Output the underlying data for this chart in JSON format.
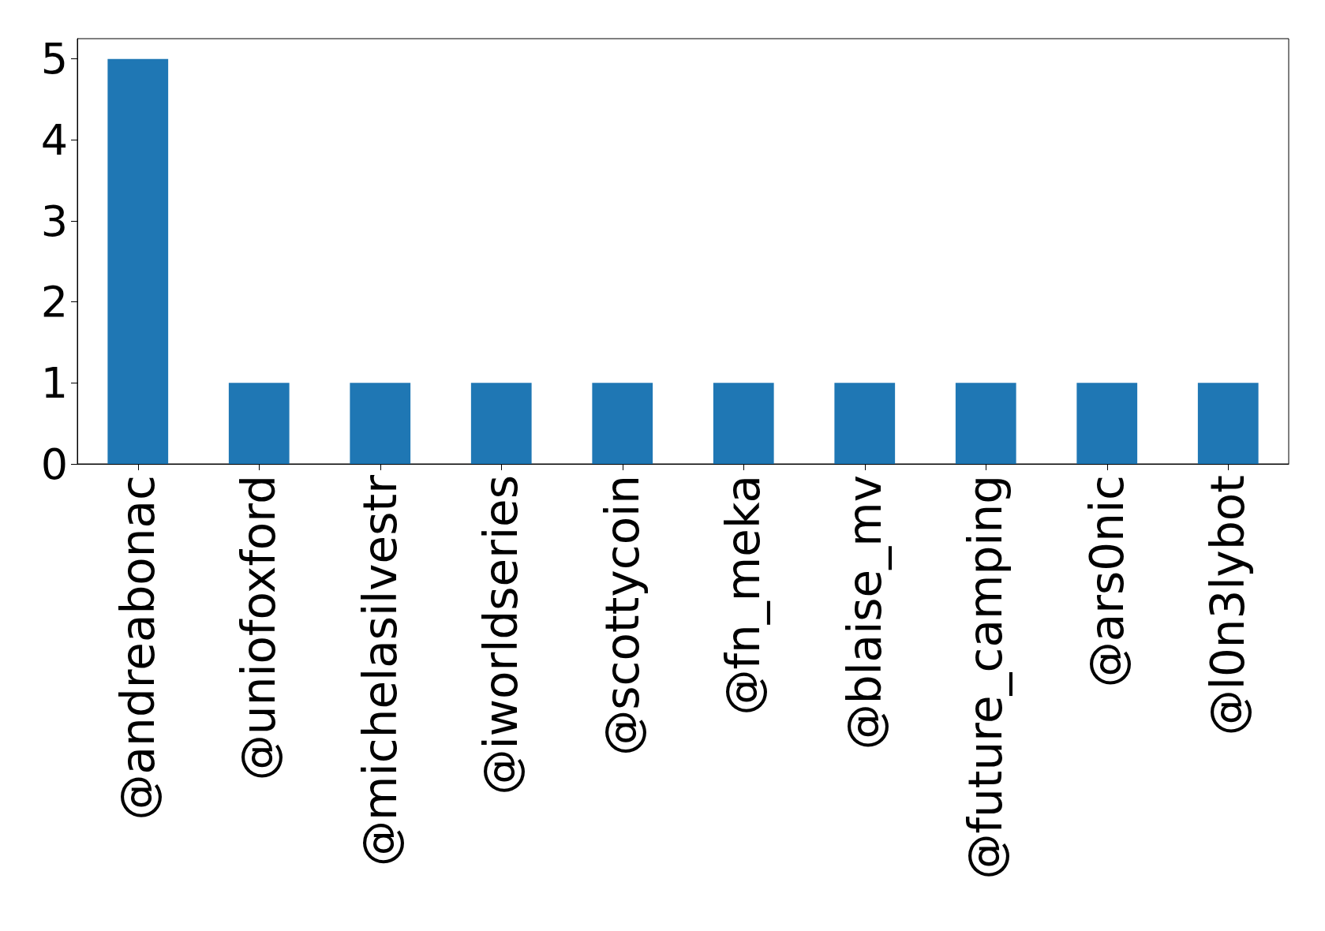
{
  "chart_data": {
    "type": "bar",
    "categories": [
      "@andreabonac",
      "@uniofoxford",
      "@michelasilvestr",
      "@iworldseries",
      "@scottycoin",
      "@fn_meka",
      "@blaise_mv",
      "@future_camping",
      "@ars0nic",
      "@l0n3lybot"
    ],
    "values": [
      5,
      1,
      1,
      1,
      1,
      1,
      1,
      1,
      1,
      1
    ],
    "color": "#1f77b4",
    "ylim": [
      0,
      5.25
    ],
    "yticks": [
      0,
      1,
      2,
      3,
      4,
      5
    ]
  }
}
